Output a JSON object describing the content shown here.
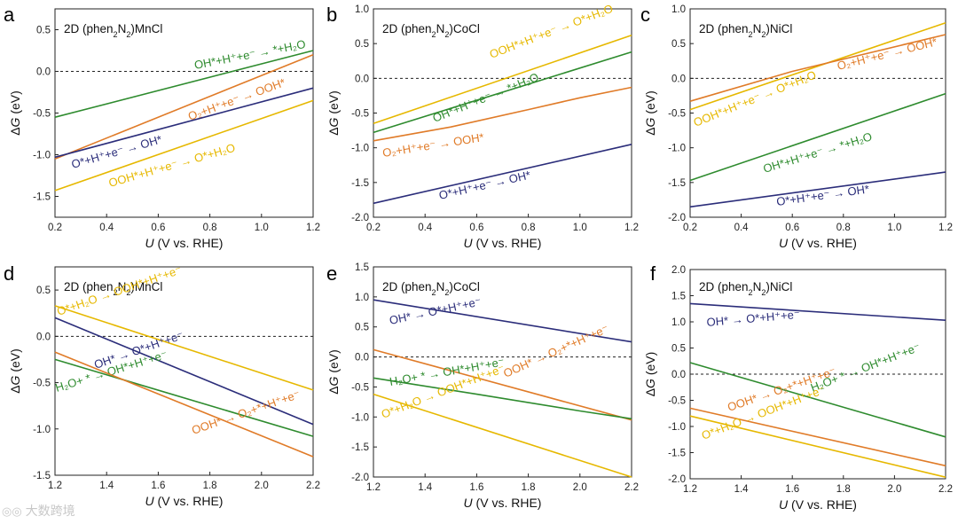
{
  "colors": {
    "green": "#2e8b2e",
    "orange": "#e07b28",
    "yellow": "#e6b800",
    "navy": "#2b2d7a"
  },
  "watermark": {
    "icon": "watermark-logo-icon",
    "text": "大数跨境"
  },
  "chart_data": [
    {
      "type": "line",
      "panel": "a",
      "title": "2D (phen2N2)MnCl",
      "xlabel": "U (V vs. RHE)",
      "ylabel": "ΔG (eV)",
      "xlim": [
        0.2,
        1.2
      ],
      "ylim": [
        -1.75,
        0.75
      ],
      "xticks": [
        "0.2",
        "0.4",
        "0.6",
        "0.8",
        "1.0",
        "1.2"
      ],
      "yticks": [
        "0.5",
        "0.0",
        "-0.5",
        "-1.0",
        "-1.5"
      ],
      "reference_line": 0,
      "series": [
        {
          "color": "green",
          "x": [
            0.2,
            1.2
          ],
          "y": [
            -0.55,
            0.25
          ],
          "label": "OH*+H⁺+e⁻ → *+H₂O"
        },
        {
          "color": "orange",
          "x": [
            0.2,
            1.2
          ],
          "y": [
            -1.05,
            0.2
          ],
          "label": "O₂+H⁺+e⁻ → OOH*"
        },
        {
          "color": "navy",
          "x": [
            0.2,
            1.2
          ],
          "y": [
            -1.03,
            -0.2
          ],
          "label": "O*+H⁺+e⁻ → OH*"
        },
        {
          "color": "yellow",
          "x": [
            0.2,
            1.2
          ],
          "y": [
            -1.43,
            -0.35
          ],
          "label": "OOH*+H⁺+e⁻ → O*+H₂O"
        }
      ]
    },
    {
      "type": "line",
      "panel": "b",
      "title": "2D (phen2N2)CoCl",
      "xlabel": "U (V vs. RHE)",
      "ylabel": "ΔG (eV)",
      "xlim": [
        0.2,
        1.2
      ],
      "ylim": [
        -2.0,
        1.0
      ],
      "xticks": [
        "0.2",
        "0.4",
        "0.6",
        "0.8",
        "1.0",
        "1.2"
      ],
      "yticks": [
        "1.0",
        "0.5",
        "0.0",
        "-0.5",
        "-1.0",
        "-1.5",
        "-2.0"
      ],
      "reference_line": 0,
      "series": [
        {
          "color": "yellow",
          "x": [
            0.2,
            1.2
          ],
          "y": [
            -0.65,
            0.62
          ],
          "label": "OOH*+H⁺+e⁻ → O*+H₂O"
        },
        {
          "color": "green",
          "x": [
            0.2,
            1.2
          ],
          "y": [
            -0.78,
            0.38
          ],
          "label": "OH*+H⁺+e⁻ → *+H₂O"
        },
        {
          "color": "orange",
          "x": [
            0.2,
            0.5,
            0.8,
            1.0,
            1.2
          ],
          "y": [
            -0.9,
            -0.7,
            -0.45,
            -0.28,
            -0.13
          ],
          "label": "O₂+H⁺+e⁻ → OOH*"
        },
        {
          "color": "navy",
          "x": [
            0.2,
            1.2
          ],
          "y": [
            -1.8,
            -0.95
          ],
          "label": "O*+H⁺+e⁻ → OH*"
        }
      ]
    },
    {
      "type": "line",
      "panel": "c",
      "title": "2D (phen2N2)NiCl",
      "xlabel": "U (V vs. RHE)",
      "ylabel": "ΔG (eV)",
      "xlim": [
        0.2,
        1.2
      ],
      "ylim": [
        -2.0,
        1.0
      ],
      "xticks": [
        "0.2",
        "0.4",
        "0.6",
        "0.8",
        "1.0",
        "1.2"
      ],
      "yticks": [
        "1.0",
        "0.5",
        "0.0",
        "-0.5",
        "-1.0",
        "-1.5",
        "-2.0"
      ],
      "reference_line": 0,
      "series": [
        {
          "color": "yellow",
          "x": [
            0.2,
            1.2
          ],
          "y": [
            -0.45,
            0.8
          ],
          "label": "OOH*+H⁺+e⁻ → O*+H₂O"
        },
        {
          "color": "orange",
          "x": [
            0.2,
            0.6,
            1.2
          ],
          "y": [
            -0.33,
            0.1,
            0.63
          ],
          "label": "O₂+H⁺+e⁻ → OOH*"
        },
        {
          "color": "green",
          "x": [
            0.2,
            1.2
          ],
          "y": [
            -1.47,
            -0.22
          ],
          "label": "OH*+H⁺+e⁻ → *+H₂O"
        },
        {
          "color": "navy",
          "x": [
            0.2,
            1.2
          ],
          "y": [
            -1.85,
            -1.35
          ],
          "label": "O*+H⁺+e⁻ → OH*"
        }
      ]
    },
    {
      "type": "line",
      "panel": "d",
      "title": "2D (phen2N2)MnCl",
      "xlabel": "U (V vs. RHE)",
      "ylabel": "ΔG (eV)",
      "xlim": [
        1.2,
        2.2
      ],
      "ylim": [
        -1.5,
        0.75
      ],
      "xticks": [
        "1.2",
        "1.4",
        "1.6",
        "1.8",
        "2.0",
        "2.2"
      ],
      "yticks": [
        "0.5",
        "0.0",
        "-0.5",
        "-1.0",
        "-1.5"
      ],
      "reference_line": 0,
      "series": [
        {
          "color": "yellow",
          "x": [
            1.2,
            2.2
          ],
          "y": [
            0.33,
            -0.58
          ],
          "label": "O*+H₂O → OOH*+H⁺+e⁻"
        },
        {
          "color": "navy",
          "x": [
            1.2,
            2.2
          ],
          "y": [
            0.2,
            -0.95
          ],
          "label": "OH* → O*+H⁺+e⁻"
        },
        {
          "color": "green",
          "x": [
            1.2,
            2.2
          ],
          "y": [
            -0.25,
            -1.08
          ],
          "label": "H₂O+ * → OH*+H⁺+e⁻"
        },
        {
          "color": "orange",
          "x": [
            1.2,
            2.2
          ],
          "y": [
            -0.17,
            -1.3
          ],
          "label": "OOH* → O₂+*+H⁺+e⁻"
        }
      ]
    },
    {
      "type": "line",
      "panel": "e",
      "title": "2D (phen2N2)CoCl",
      "xlabel": "U (V vs. RHE)",
      "ylabel": "ΔG (eV)",
      "xlim": [
        1.2,
        2.2
      ],
      "ylim": [
        -2.0,
        1.5
      ],
      "xticks": [
        "1.2",
        "1.4",
        "1.6",
        "1.8",
        "2.0",
        "2.2"
      ],
      "yticks": [
        "1.5",
        "1.0",
        "0.5",
        "0.0",
        "-0.5",
        "-1.0",
        "-1.5",
        "-2.0"
      ],
      "reference_line": 0,
      "series": [
        {
          "color": "navy",
          "x": [
            1.2,
            2.2
          ],
          "y": [
            0.95,
            0.25
          ],
          "label": "OH* → O*+H⁺+e⁻"
        },
        {
          "color": "orange",
          "x": [
            1.2,
            2.2
          ],
          "y": [
            0.12,
            -1.05
          ],
          "label": "OOH* → O₂+*+H⁺+e⁻"
        },
        {
          "color": "green",
          "x": [
            1.2,
            1.6,
            2.0,
            2.2
          ],
          "y": [
            -0.35,
            -0.62,
            -0.9,
            -1.03
          ],
          "label": "H₂O+ * → OH*+H⁺+e⁻"
        },
        {
          "color": "yellow",
          "x": [
            1.2,
            2.2
          ],
          "y": [
            -0.62,
            -2.0
          ],
          "label": "O*+H₂O → OOH*+H⁺+e⁻"
        }
      ]
    },
    {
      "type": "line",
      "panel": "f",
      "title": "2D (phen2N2)NiCl",
      "xlabel": "U (V vs. RHE)",
      "ylabel": "ΔG (eV)",
      "xlim": [
        1.2,
        2.2
      ],
      "ylim": [
        -2.0,
        2.0
      ],
      "xticks": [
        "1.2",
        "1.4",
        "1.6",
        "1.8",
        "2.0",
        "2.2"
      ],
      "yticks": [
        "2.0",
        "1.5",
        "1.0",
        "0.5",
        "0.0",
        "-0.5",
        "-1.0",
        "-1.5",
        "-2.0"
      ],
      "reference_line": 0,
      "series": [
        {
          "color": "navy",
          "x": [
            1.2,
            2.2
          ],
          "y": [
            1.35,
            1.03
          ],
          "label": "OH* → O*+H⁺+e⁻"
        },
        {
          "color": "green",
          "x": [
            1.2,
            2.2
          ],
          "y": [
            0.22,
            -1.2
          ],
          "label": "H₂O+ * → OH*+H⁺+e⁻"
        },
        {
          "color": "orange",
          "x": [
            1.2,
            2.2
          ],
          "y": [
            -0.65,
            -1.75
          ],
          "label": "OOH* → O₂+*+H⁺+e⁻"
        },
        {
          "color": "yellow",
          "x": [
            1.2,
            2.2
          ],
          "y": [
            -0.8,
            -1.97
          ],
          "label": "O*+H₂O → OOH*+H⁺+e⁻"
        }
      ]
    }
  ]
}
